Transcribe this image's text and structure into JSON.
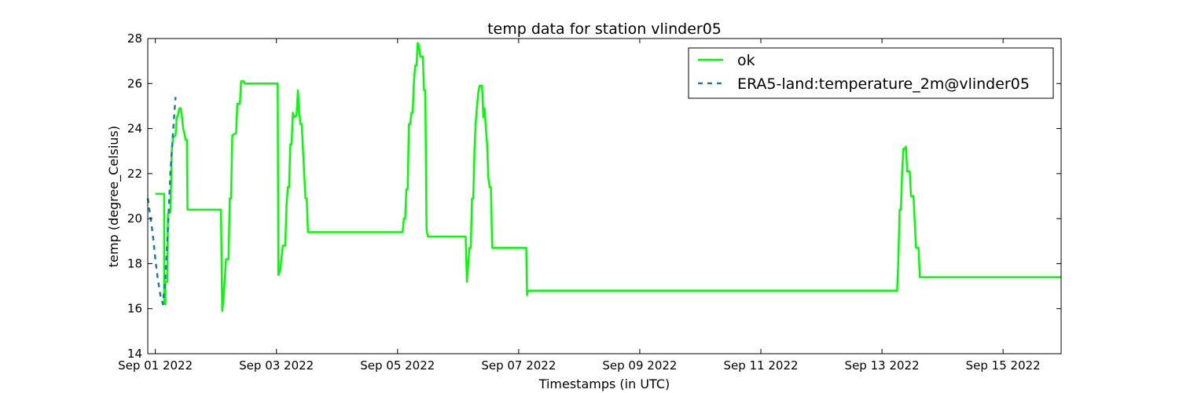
{
  "chart_data": {
    "type": "line",
    "title": "temp data for station vlinder05",
    "xlabel": "Timestamps (in UTC)",
    "ylabel": "temp (degree_Celsius)",
    "ylim": [
      14,
      28
    ],
    "xlim": [
      "2022-08-31T21:00",
      "2022-09-15T23:00"
    ],
    "y_ticks": [
      14,
      16,
      18,
      20,
      22,
      24,
      26,
      28
    ],
    "x_ticks": [
      {
        "t": "2022-09-01T00:00",
        "label": "Sep 01 2022"
      },
      {
        "t": "2022-09-03T00:00",
        "label": "Sep 03 2022"
      },
      {
        "t": "2022-09-05T00:00",
        "label": "Sep 05 2022"
      },
      {
        "t": "2022-09-07T00:00",
        "label": "Sep 07 2022"
      },
      {
        "t": "2022-09-09T00:00",
        "label": "Sep 09 2022"
      },
      {
        "t": "2022-09-11T00:00",
        "label": "Sep 11 2022"
      },
      {
        "t": "2022-09-13T00:00",
        "label": "Sep 13 2022"
      },
      {
        "t": "2022-09-15T00:00",
        "label": "Sep 15 2022"
      }
    ],
    "grid": false,
    "legend_position": "top-right",
    "series": [
      {
        "name": "ok",
        "color": "#00ff00",
        "style": "solid",
        "points": [
          [
            "2022-09-01T00:00",
            21.1
          ],
          [
            "2022-09-01T03:30",
            21.1
          ],
          [
            "2022-09-01T03:30",
            16.2
          ],
          [
            "2022-09-01T04:00",
            16.2
          ],
          [
            "2022-09-01T04:00",
            17.2
          ],
          [
            "2022-09-01T04:45",
            17.2
          ],
          [
            "2022-09-01T05:00",
            20.2
          ],
          [
            "2022-09-01T06:00",
            20.3
          ],
          [
            "2022-09-01T06:30",
            23.0
          ],
          [
            "2022-09-01T07:00",
            23.6
          ],
          [
            "2022-09-01T08:00",
            23.7
          ],
          [
            "2022-09-01T08:30",
            24.5
          ],
          [
            "2022-09-01T09:00",
            24.6
          ],
          [
            "2022-09-01T09:30",
            24.9
          ],
          [
            "2022-09-01T10:00",
            24.9
          ],
          [
            "2022-09-01T10:30",
            24.6
          ],
          [
            "2022-09-01T11:00",
            24.0
          ],
          [
            "2022-09-01T11:30",
            23.8
          ],
          [
            "2022-09-01T12:00",
            23.5
          ],
          [
            "2022-09-01T12:30",
            23.5
          ],
          [
            "2022-09-01T12:45",
            20.4
          ],
          [
            "2022-09-02T02:00",
            20.4
          ],
          [
            "2022-09-02T02:30",
            15.9
          ],
          [
            "2022-09-02T03:00",
            16.4
          ],
          [
            "2022-09-02T04:00",
            18.2
          ],
          [
            "2022-09-02T05:00",
            18.2
          ],
          [
            "2022-09-02T05:30",
            20.9
          ],
          [
            "2022-09-02T06:00",
            20.9
          ],
          [
            "2022-09-02T06:30",
            23.7
          ],
          [
            "2022-09-02T08:00",
            23.8
          ],
          [
            "2022-09-02T08:30",
            25.1
          ],
          [
            "2022-09-02T09:30",
            25.1
          ],
          [
            "2022-09-02T10:00",
            26.1
          ],
          [
            "2022-09-02T11:00",
            26.1
          ],
          [
            "2022-09-02T11:30",
            26.0
          ],
          [
            "2022-09-03T00:30",
            26.0
          ],
          [
            "2022-09-03T00:45",
            17.5
          ],
          [
            "2022-09-03T01:30",
            17.7
          ],
          [
            "2022-09-03T02:30",
            18.8
          ],
          [
            "2022-09-03T03:30",
            18.8
          ],
          [
            "2022-09-03T04:00",
            20.6
          ],
          [
            "2022-09-03T04:30",
            21.4
          ],
          [
            "2022-09-03T05:00",
            21.4
          ],
          [
            "2022-09-03T05:30",
            23.3
          ],
          [
            "2022-09-03T06:00",
            23.3
          ],
          [
            "2022-09-03T06:30",
            24.7
          ],
          [
            "2022-09-03T07:00",
            24.5
          ],
          [
            "2022-09-03T08:00",
            24.6
          ],
          [
            "2022-09-03T08:30",
            25.7
          ],
          [
            "2022-09-03T09:00",
            24.8
          ],
          [
            "2022-09-03T09:30",
            24.2
          ],
          [
            "2022-09-03T10:00",
            24.2
          ],
          [
            "2022-09-03T10:30",
            23.1
          ],
          [
            "2022-09-03T11:00",
            22.0
          ],
          [
            "2022-09-03T11:30",
            20.9
          ],
          [
            "2022-09-03T12:00",
            20.9
          ],
          [
            "2022-09-03T12:30",
            19.4
          ],
          [
            "2022-09-05T02:00",
            19.4
          ],
          [
            "2022-09-05T02:30",
            20.0
          ],
          [
            "2022-09-05T03:00",
            20.0
          ],
          [
            "2022-09-05T03:30",
            21.3
          ],
          [
            "2022-09-05T04:00",
            21.3
          ],
          [
            "2022-09-05T04:30",
            24.2
          ],
          [
            "2022-09-05T05:00",
            24.2
          ],
          [
            "2022-09-05T05:30",
            24.7
          ],
          [
            "2022-09-05T06:00",
            24.7
          ],
          [
            "2022-09-05T06:30",
            26.1
          ],
          [
            "2022-09-05T07:00",
            26.8
          ],
          [
            "2022-09-05T07:30",
            26.8
          ],
          [
            "2022-09-05T08:00",
            27.8
          ],
          [
            "2022-09-05T08:30",
            27.7
          ],
          [
            "2022-09-05T09:00",
            27.2
          ],
          [
            "2022-09-05T10:00",
            27.2
          ],
          [
            "2022-09-05T10:30",
            25.7
          ],
          [
            "2022-09-05T11:00",
            25.7
          ],
          [
            "2022-09-05T11:30",
            19.5
          ],
          [
            "2022-09-05T12:00",
            19.2
          ],
          [
            "2022-09-06T03:00",
            19.2
          ],
          [
            "2022-09-06T03:30",
            17.2
          ],
          [
            "2022-09-06T04:00",
            18.0
          ],
          [
            "2022-09-06T04:30",
            18.7
          ],
          [
            "2022-09-06T05:00",
            18.7
          ],
          [
            "2022-09-06T05:30",
            20.9
          ],
          [
            "2022-09-06T06:00",
            20.9
          ],
          [
            "2022-09-06T06:30",
            23.1
          ],
          [
            "2022-09-06T07:00",
            24.3
          ],
          [
            "2022-09-06T07:30",
            25.0
          ],
          [
            "2022-09-06T08:00",
            25.6
          ],
          [
            "2022-09-06T08:30",
            25.9
          ],
          [
            "2022-09-06T09:30",
            25.9
          ],
          [
            "2022-09-06T10:00",
            24.5
          ],
          [
            "2022-09-06T10:30",
            24.9
          ],
          [
            "2022-09-06T11:00",
            24.0
          ],
          [
            "2022-09-06T11:30",
            23.3
          ],
          [
            "2022-09-06T12:00",
            21.8
          ],
          [
            "2022-09-06T12:30",
            21.4
          ],
          [
            "2022-09-06T13:00",
            21.4
          ],
          [
            "2022-09-06T13:30",
            18.7
          ],
          [
            "2022-09-07T03:00",
            18.7
          ],
          [
            "2022-09-07T03:20",
            16.6
          ],
          [
            "2022-09-07T03:40",
            16.8
          ],
          [
            "2022-09-13T06:00",
            16.8
          ],
          [
            "2022-09-13T06:30",
            18.2
          ],
          [
            "2022-09-13T07:00",
            20.4
          ],
          [
            "2022-09-13T07:30",
            20.4
          ],
          [
            "2022-09-13T08:00",
            22.1
          ],
          [
            "2022-09-13T08:30",
            23.1
          ],
          [
            "2022-09-13T09:00",
            23.1
          ],
          [
            "2022-09-13T09:30",
            23.2
          ],
          [
            "2022-09-13T10:00",
            22.1
          ],
          [
            "2022-09-13T11:00",
            22.1
          ],
          [
            "2022-09-13T11:30",
            21.0
          ],
          [
            "2022-09-13T12:30",
            21.0
          ],
          [
            "2022-09-13T13:00",
            19.8
          ],
          [
            "2022-09-13T13:30",
            18.7
          ],
          [
            "2022-09-13T14:30",
            18.7
          ],
          [
            "2022-09-13T15:00",
            17.4
          ],
          [
            "2022-09-15T23:00",
            17.4
          ]
        ]
      },
      {
        "name": "ERA5-land:temperature_2m@vlinder05",
        "color": "#1f77b4",
        "style": "dashed",
        "points": [
          [
            "2022-08-31T21:00",
            20.9
          ],
          [
            "2022-08-31T23:00",
            19.3
          ],
          [
            "2022-09-01T00:00",
            18.2
          ],
          [
            "2022-09-01T01:00",
            17.3
          ],
          [
            "2022-09-01T02:00",
            16.6
          ],
          [
            "2022-09-01T03:00",
            16.2
          ],
          [
            "2022-09-01T04:00",
            17.4
          ],
          [
            "2022-09-01T05:00",
            19.6
          ],
          [
            "2022-09-01T06:00",
            22.1
          ],
          [
            "2022-09-01T07:00",
            23.8
          ],
          [
            "2022-09-01T08:00",
            25.4
          ]
        ]
      }
    ]
  }
}
